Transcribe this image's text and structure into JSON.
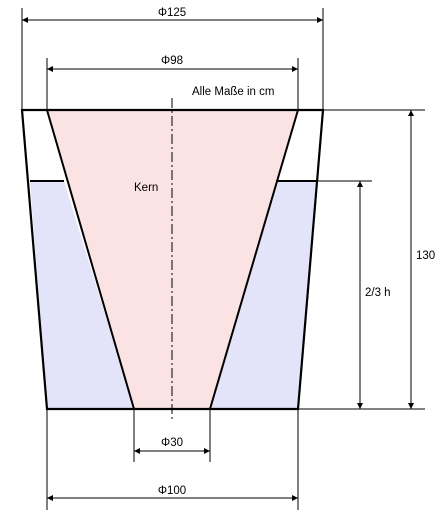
{
  "diagram": {
    "labels": {
      "top_diameter": "Φ125",
      "core_top_diameter": "Φ98",
      "units_note": "Alle Maße in cm",
      "core_label": "Kern",
      "total_height": "130",
      "fill_height": "2/3 h",
      "core_bottom_diameter": "Φ30",
      "bottom_diameter": "Φ100"
    },
    "colors": {
      "core_fill": "#fbe3e3",
      "water_fill": "#e3e3f9",
      "outline": "#000000"
    }
  }
}
